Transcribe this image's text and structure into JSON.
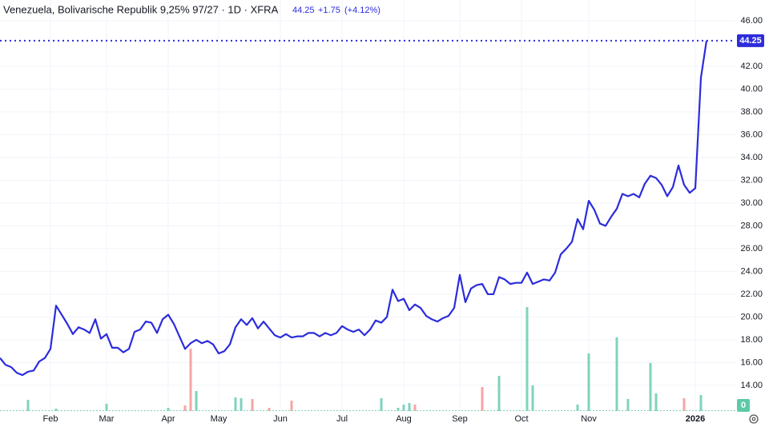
{
  "chart_data": {
    "type": "line",
    "title": "Venezuela, Bolivarische Republik 9,25% 97/27 · 1D · XFRA",
    "last_price": 44.25,
    "change": {
      "value": 1.75,
      "label": "+1.75"
    },
    "change_pct": {
      "value": 4.12,
      "label": "(+4.12%)"
    },
    "categories": [
      null,
      null,
      null,
      null,
      null,
      null,
      null,
      null,
      null,
      "Feb",
      null,
      null,
      null,
      null,
      null,
      null,
      null,
      null,
      null,
      "Mar",
      null,
      null,
      null,
      null,
      null,
      null,
      null,
      null,
      null,
      null,
      "Apr",
      null,
      null,
      null,
      null,
      null,
      null,
      null,
      null,
      "May",
      null,
      null,
      null,
      null,
      null,
      null,
      null,
      null,
      null,
      null,
      "Jun",
      null,
      null,
      null,
      null,
      null,
      null,
      null,
      null,
      null,
      null,
      "Jul",
      null,
      null,
      null,
      null,
      null,
      null,
      null,
      null,
      null,
      null,
      "Aug",
      null,
      null,
      null,
      null,
      null,
      null,
      null,
      null,
      null,
      "Sep",
      null,
      null,
      null,
      null,
      null,
      null,
      null,
      null,
      null,
      null,
      "Oct",
      null,
      null,
      null,
      null,
      null,
      null,
      null,
      null,
      null,
      null,
      null,
      "Nov",
      null,
      null,
      null,
      null,
      null,
      null,
      null,
      null,
      null,
      null,
      null,
      null,
      null,
      null,
      null,
      null,
      null,
      null,
      "2026",
      null,
      null
    ],
    "series": [
      {
        "name": "Price",
        "color": "#2c2cdc",
        "values": [
          16.4,
          15.8,
          15.6,
          15.1,
          14.9,
          15.2,
          15.3,
          16.1,
          16.4,
          17.2,
          21.0,
          20.2,
          19.4,
          18.5,
          19.1,
          18.9,
          18.6,
          19.8,
          18.1,
          18.5,
          17.3,
          17.3,
          16.9,
          17.2,
          18.7,
          18.9,
          19.6,
          19.5,
          18.6,
          19.8,
          20.2,
          19.4,
          18.3,
          17.2,
          17.7,
          18.0,
          17.7,
          17.9,
          17.6,
          16.8,
          17.0,
          17.6,
          19.1,
          19.8,
          19.3,
          19.9,
          19.0,
          19.6,
          19.0,
          18.4,
          18.2,
          18.5,
          18.2,
          18.3,
          18.3,
          18.6,
          18.6,
          18.3,
          18.6,
          18.4,
          18.6,
          19.2,
          18.9,
          18.7,
          18.9,
          18.4,
          18.9,
          19.7,
          19.5,
          20.0,
          22.4,
          21.4,
          21.6,
          20.6,
          21.1,
          20.8,
          20.1,
          19.8,
          19.6,
          19.9,
          20.1,
          20.8,
          23.7,
          21.3,
          22.5,
          22.8,
          22.9,
          22.0,
          22.0,
          23.5,
          23.3,
          22.9,
          23.0,
          23.0,
          23.9,
          22.9,
          23.1,
          23.3,
          23.2,
          23.9,
          25.5,
          26.0,
          26.6,
          28.6,
          27.7,
          30.2,
          29.4,
          28.2,
          28.0,
          28.8,
          29.5,
          30.8,
          30.6,
          30.8,
          30.5,
          31.7,
          32.4,
          32.2,
          31.6,
          30.6,
          31.4,
          33.3,
          31.6,
          30.9,
          31.3,
          41.0,
          44.25
        ]
      },
      {
        "name": "Volume up",
        "color": "#7fd3bd",
        "axis": "volume",
        "values": [
          null,
          null,
          null,
          null,
          null,
          14,
          null,
          null,
          null,
          null,
          3,
          null,
          null,
          null,
          null,
          null,
          null,
          null,
          null,
          9,
          null,
          null,
          null,
          null,
          null,
          null,
          null,
          null,
          null,
          null,
          4,
          null,
          null,
          null,
          null,
          25,
          null,
          null,
          null,
          null,
          null,
          null,
          17,
          16,
          null,
          null,
          null,
          null,
          null,
          null,
          null,
          null,
          null,
          null,
          null,
          null,
          null,
          null,
          null,
          null,
          null,
          null,
          null,
          null,
          null,
          null,
          null,
          null,
          16,
          null,
          null,
          4,
          8,
          10,
          null,
          null,
          null,
          null,
          null,
          null,
          null,
          null,
          null,
          null,
          null,
          null,
          null,
          null,
          null,
          44,
          null,
          null,
          null,
          null,
          130,
          32,
          null,
          null,
          null,
          null,
          null,
          null,
          null,
          8,
          null,
          72,
          null,
          null,
          null,
          null,
          92,
          null,
          15,
          null,
          null,
          null,
          60,
          22,
          null,
          null,
          null,
          null,
          null,
          null,
          null,
          20,
          null
        ]
      },
      {
        "name": "Volume down",
        "color": "#f7a4a4",
        "axis": "volume",
        "values": [
          null,
          null,
          null,
          null,
          null,
          null,
          null,
          null,
          null,
          null,
          null,
          null,
          null,
          null,
          null,
          null,
          null,
          null,
          null,
          null,
          null,
          null,
          null,
          null,
          null,
          null,
          null,
          null,
          null,
          null,
          null,
          null,
          null,
          7,
          78,
          null,
          null,
          null,
          null,
          null,
          null,
          null,
          null,
          null,
          null,
          15,
          null,
          null,
          4,
          null,
          null,
          null,
          13,
          null,
          null,
          null,
          null,
          null,
          null,
          null,
          null,
          null,
          null,
          null,
          null,
          null,
          null,
          null,
          null,
          null,
          null,
          null,
          null,
          null,
          8,
          null,
          null,
          null,
          null,
          null,
          null,
          null,
          null,
          null,
          null,
          null,
          30,
          null,
          null,
          null,
          null,
          null,
          null,
          null,
          null,
          null,
          null,
          null,
          null,
          null,
          null,
          null,
          null,
          null,
          null,
          null,
          null,
          null,
          null,
          null,
          null,
          null,
          null,
          null,
          null,
          null,
          null,
          null,
          null,
          null,
          null,
          null,
          16,
          null,
          null,
          null,
          null
        ]
      }
    ],
    "volume_last": 0,
    "volume_lim": [
      0,
      140
    ],
    "ylim": [
      11.75,
      47.82
    ],
    "yticks": [
      {
        "value": 14,
        "label": "14.00"
      },
      {
        "value": 16,
        "label": "16.00"
      },
      {
        "value": 18,
        "label": "18.00"
      },
      {
        "value": 20,
        "label": "20.00"
      },
      {
        "value": 22,
        "label": "22.00"
      },
      {
        "value": 24,
        "label": "24.00"
      },
      {
        "value": 26,
        "label": "26.00"
      },
      {
        "value": 28,
        "label": "28.00"
      },
      {
        "value": 30,
        "label": "30.00"
      },
      {
        "value": 32,
        "label": "32.00"
      },
      {
        "value": 34,
        "label": "34.00"
      },
      {
        "value": 36,
        "label": "36.00"
      },
      {
        "value": 38,
        "label": "38.00"
      },
      {
        "value": 40,
        "label": "40.00"
      },
      {
        "value": 42,
        "label": "42.00"
      },
      {
        "value": 46,
        "label": "46.00"
      }
    ],
    "grid": true
  }
}
